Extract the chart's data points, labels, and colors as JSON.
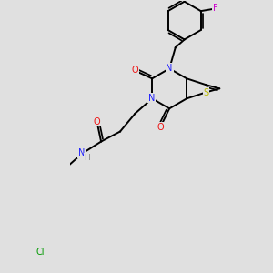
{
  "background_color": "#e0e0e0",
  "colors": {
    "C": "#000000",
    "N": "#2020ff",
    "O": "#ee1111",
    "S": "#bbbb00",
    "F": "#cc00cc",
    "Cl": "#009900",
    "H": "#888888",
    "bond": "#000000"
  },
  "bond_lw": 1.4,
  "dbo": 0.012,
  "font_size": 7.0
}
